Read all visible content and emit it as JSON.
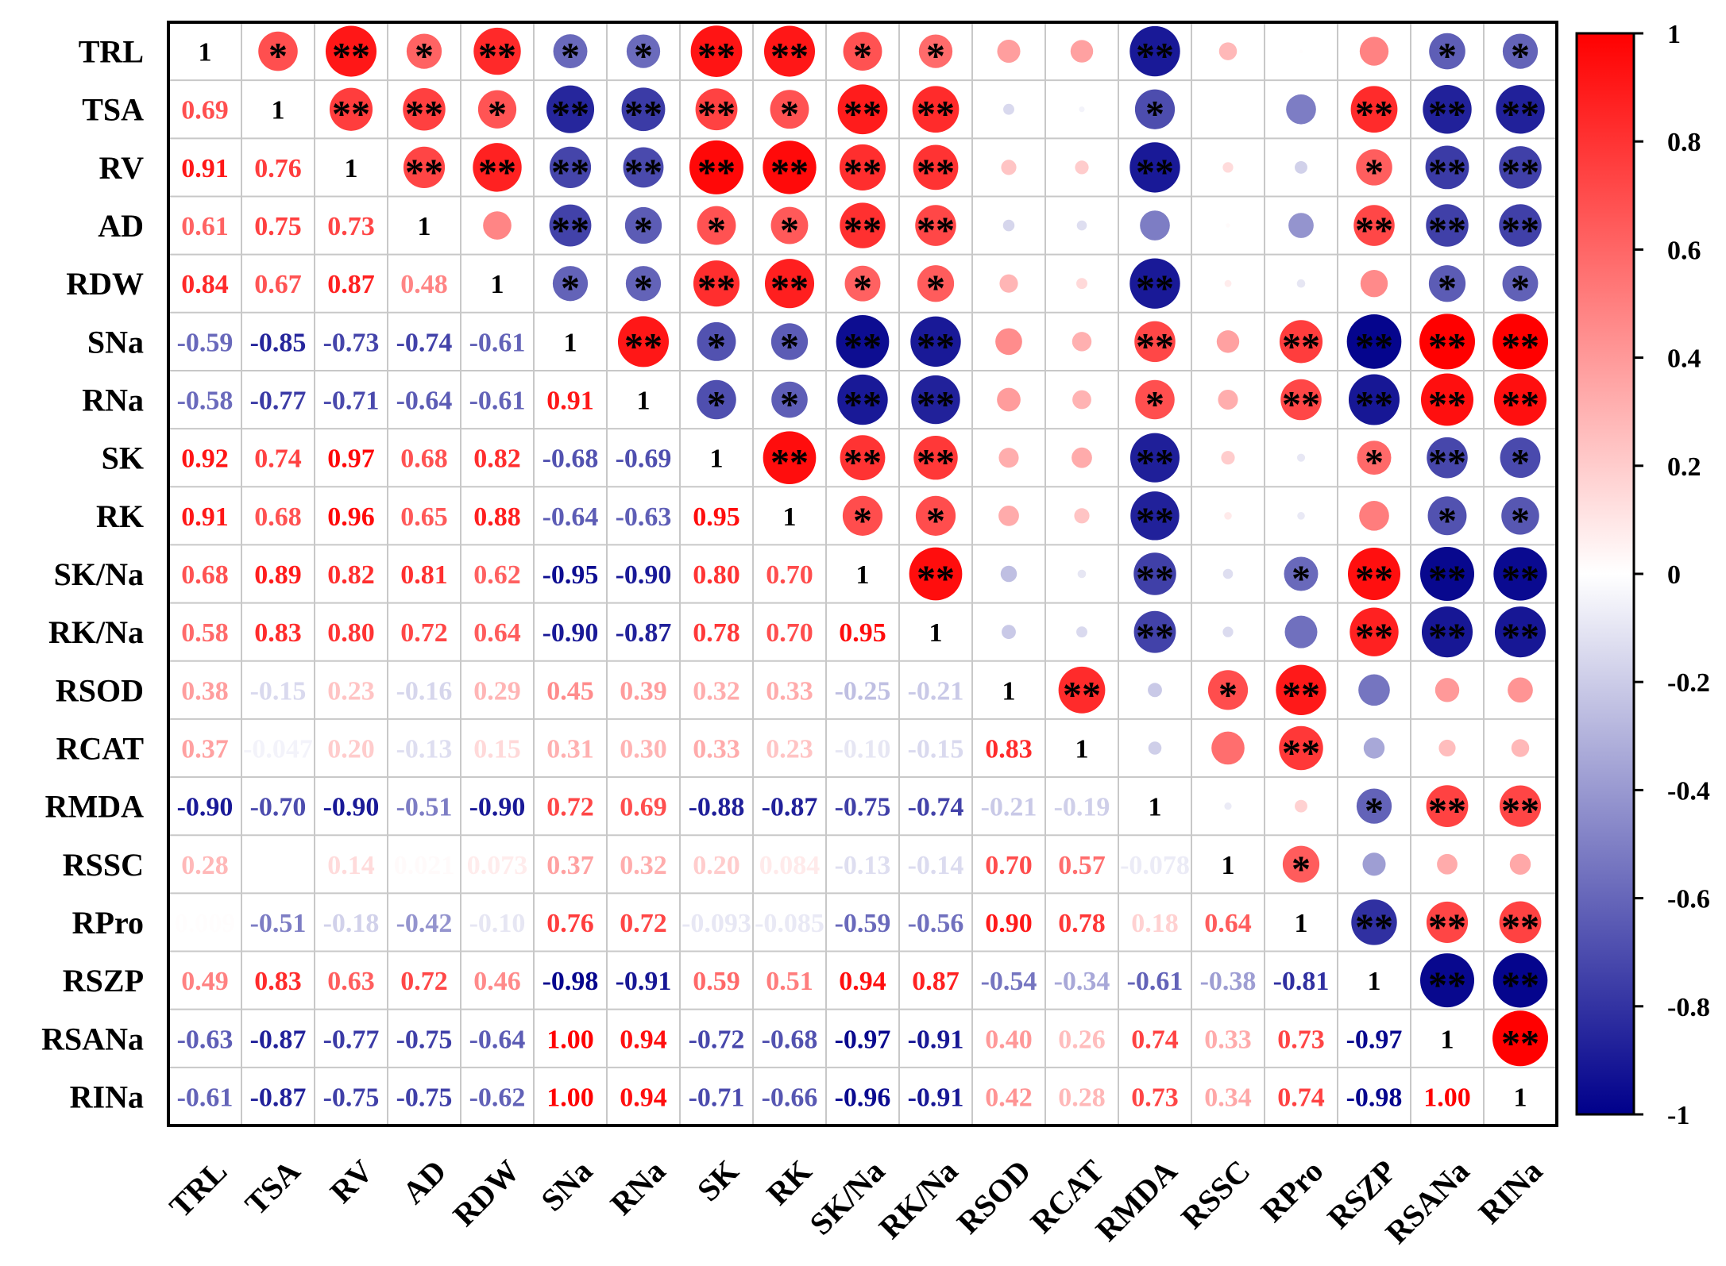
{
  "chart_data": {
    "type": "heatmap",
    "subtype": "correlation-matrix",
    "variables": [
      "TRL",
      "TSA",
      "RV",
      "AD",
      "RDW",
      "SNa",
      "RNa",
      "SK",
      "RK",
      "SK/Na",
      "RK/Na",
      "RSOD",
      "RCAT",
      "RMDA",
      "RSSC",
      "RPro",
      "RSZP",
      "RSANa",
      "RINa"
    ],
    "diagonal_label": "1",
    "lower_triangle": [
      [],
      [
        "0.69"
      ],
      [
        "0.91",
        "0.76"
      ],
      [
        "0.61",
        "0.75",
        "0.73"
      ],
      [
        "0.84",
        "0.67",
        "0.87",
        "0.48"
      ],
      [
        "-0.59",
        "-0.85",
        "-0.73",
        "-0.74",
        "-0.61"
      ],
      [
        "-0.58",
        "-0.77",
        "-0.71",
        "-0.64",
        "-0.61",
        "0.91"
      ],
      [
        "0.92",
        "0.74",
        "0.97",
        "0.68",
        "0.82",
        "-0.68",
        "-0.69"
      ],
      [
        "0.91",
        "0.68",
        "0.96",
        "0.65",
        "0.88",
        "-0.64",
        "-0.63",
        "0.95"
      ],
      [
        "0.68",
        "0.89",
        "0.82",
        "0.81",
        "0.62",
        "-0.95",
        "-0.90",
        "0.80",
        "0.70"
      ],
      [
        "0.58",
        "0.83",
        "0.80",
        "0.72",
        "0.64",
        "-0.90",
        "-0.87",
        "0.78",
        "0.70",
        "0.95"
      ],
      [
        "0.38",
        "-0.15",
        "0.23",
        "-0.16",
        "0.29",
        "0.45",
        "0.39",
        "0.32",
        "0.33",
        "-0.25",
        "-0.21"
      ],
      [
        "0.37",
        "-0.047",
        "0.20",
        "-0.13",
        "0.15",
        "0.31",
        "0.30",
        "0.33",
        "0.23",
        "-0.10",
        "-0.15",
        "0.83"
      ],
      [
        "-0.90",
        "-0.70",
        "-0.90",
        "-0.51",
        "-0.90",
        "0.72",
        "0.69",
        "-0.88",
        "-0.87",
        "-0.75",
        "-0.74",
        "-0.21",
        "-0.19"
      ],
      [
        "0.28",
        "",
        "0.14",
        "0.021",
        "0.073",
        "0.37",
        "0.32",
        "0.20",
        "0.084",
        "-0.13",
        "-0.14",
        "0.70",
        "0.57",
        "-0.078"
      ],
      [
        "0.009",
        "-0.51",
        "-0.18",
        "-0.42",
        "-0.10",
        "0.76",
        "0.72",
        "-0.093",
        "-0.085",
        "-0.59",
        "-0.56",
        "0.90",
        "0.78",
        "0.18",
        "0.64"
      ],
      [
        "0.49",
        "0.83",
        "0.63",
        "0.72",
        "0.46",
        "-0.98",
        "-0.91",
        "0.59",
        "0.51",
        "0.94",
        "0.87",
        "-0.54",
        "-0.34",
        "-0.61",
        "-0.38",
        "-0.81"
      ],
      [
        "-0.63",
        "-0.87",
        "-0.77",
        "-0.75",
        "-0.64",
        "1.00",
        "0.94",
        "-0.72",
        "-0.68",
        "-0.97",
        "-0.91",
        "0.40",
        "0.26",
        "0.74",
        "0.33",
        "0.73",
        "-0.97"
      ],
      [
        "-0.61",
        "-0.87",
        "-0.75",
        "-0.75",
        "-0.62",
        "1.00",
        "0.94",
        "-0.71",
        "-0.66",
        "-0.96",
        "-0.91",
        "0.42",
        "0.28",
        "0.73",
        "0.34",
        "0.74",
        "-0.98",
        "1.00"
      ]
    ],
    "upper_significance": [
      [
        "*",
        "**",
        "*",
        "**",
        "*",
        "*",
        "**",
        "**",
        "*",
        "*",
        "",
        "",
        "**",
        "",
        "",
        "",
        "*",
        "*"
      ],
      [
        "**",
        "**",
        "*",
        "**",
        "**",
        "**",
        "*",
        "**",
        "**",
        "",
        "",
        "*",
        "",
        "",
        "**",
        "**",
        "**"
      ],
      [
        "**",
        "**",
        "**",
        "**",
        "**",
        "**",
        "**",
        "**",
        "",
        "",
        "**",
        "",
        "",
        "*",
        "**",
        "**"
      ],
      [
        "",
        "**",
        "*",
        "*",
        "*",
        "**",
        "**",
        "",
        "",
        "",
        "",
        "",
        "**",
        "**",
        "**"
      ],
      [
        "*",
        "*",
        "**",
        "**",
        "*",
        "*",
        "",
        "",
        "**",
        "",
        "",
        "",
        "*",
        "*"
      ],
      [
        "**",
        "*",
        "*",
        "**",
        "**",
        "",
        "",
        "**",
        "",
        "**",
        "**",
        "**",
        "**"
      ],
      [
        "*",
        "*",
        "**",
        "**",
        "",
        "",
        "*",
        "",
        "**",
        "**",
        "**",
        "**"
      ],
      [
        "**",
        "**",
        "**",
        "",
        "",
        "**",
        "",
        "",
        "*",
        "**",
        "*"
      ],
      [
        "*",
        "*",
        "",
        "",
        "**",
        "",
        "",
        "",
        "*",
        "*"
      ],
      [
        "**",
        "",
        "",
        "**",
        "",
        "*",
        "**",
        "**",
        "**"
      ],
      [
        "",
        "",
        "**",
        "",
        "",
        "**",
        "**",
        "**"
      ],
      [
        "**",
        "",
        "*",
        "**",
        "",
        "",
        ""
      ],
      [
        "",
        "",
        "**",
        "",
        "",
        ""
      ],
      [
        "",
        "",
        "*",
        "**",
        "**"
      ],
      [
        "*",
        "",
        "",
        ""
      ],
      [
        "**",
        "**",
        "**"
      ],
      [
        "**",
        "**"
      ],
      [
        "**"
      ]
    ],
    "colorbar": {
      "range": [
        -1,
        1
      ],
      "ticks": [
        "1",
        "0.8",
        "0.6",
        "0.4",
        "0.2",
        "0",
        "-0.2",
        "-0.4",
        "-0.6",
        "-0.8",
        "-1"
      ],
      "tick_values": [
        1,
        0.8,
        0.6,
        0.4,
        0.2,
        0,
        -0.2,
        -0.4,
        -0.6,
        -0.8,
        -1
      ],
      "colors": {
        "positive": "#ff0000",
        "zero": "#ffffff",
        "negative": "#00008b"
      }
    },
    "grid": true,
    "legend_placement": "right"
  }
}
